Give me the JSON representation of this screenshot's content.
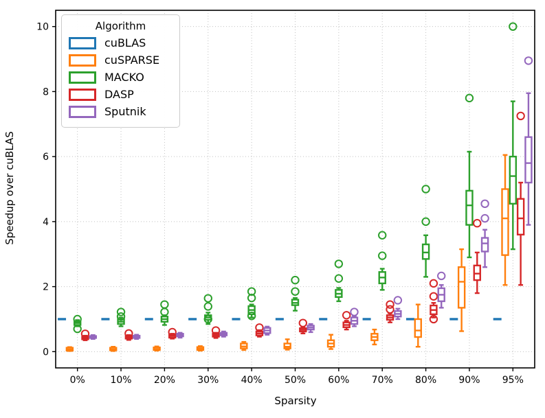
{
  "chart_data": {
    "type": "boxplot",
    "title": "",
    "xlabel": "Sparsity",
    "ylabel": "Speedup over cuBLAS",
    "legend_title": "Algorithm",
    "legend_position": "upper-left",
    "grid": "dotted",
    "categories": [
      "0%",
      "10%",
      "20%",
      "30%",
      "40%",
      "50%",
      "60%",
      "70%",
      "80%",
      "90%",
      "95%"
    ],
    "yticks": [
      0,
      2,
      4,
      6,
      8,
      10
    ],
    "yticklabels": [
      "0",
      "2",
      "4",
      "6",
      "8",
      "10"
    ],
    "ylim": [
      -0.5,
      10.5
    ],
    "baseline": {
      "series": "cuBLAS",
      "value": 1.0
    },
    "series": [
      {
        "name": "cuBLAS",
        "color": "#1f77b4",
        "style": "flat-line",
        "values": [
          1,
          1,
          1,
          1,
          1,
          1,
          1,
          1,
          1,
          1,
          1
        ]
      },
      {
        "name": "cuSPARSE",
        "color": "#ff7f0e",
        "style": "box",
        "boxes": [
          [
            0.02,
            0.03,
            0.07,
            0.12,
            0.14
          ],
          [
            0.02,
            0.04,
            0.07,
            0.12,
            0.15
          ],
          [
            0.03,
            0.05,
            0.08,
            0.13,
            0.16
          ],
          [
            0.03,
            0.05,
            0.09,
            0.14,
            0.17
          ],
          [
            0.05,
            0.1,
            0.16,
            0.25,
            0.3
          ],
          [
            0.06,
            0.1,
            0.15,
            0.25,
            0.38
          ],
          [
            0.08,
            0.15,
            0.25,
            0.35,
            0.52
          ],
          [
            0.22,
            0.35,
            0.45,
            0.55,
            0.68
          ],
          [
            0.15,
            0.45,
            0.65,
            1.0,
            1.45
          ],
          [
            0.63,
            1.35,
            2.15,
            2.6,
            3.15
          ],
          [
            2.05,
            2.97,
            4.1,
            5.0,
            6.05
          ]
        ],
        "outliers": [
          [],
          [],
          [],
          [],
          [],
          [],
          [],
          [],
          [],
          [],
          []
        ]
      },
      {
        "name": "MACKO",
        "color": "#2ca02c",
        "style": "box",
        "boxes": [
          [
            0.78,
            0.82,
            0.88,
            0.93,
            0.97
          ],
          [
            0.78,
            0.85,
            0.92,
            1.0,
            1.05
          ],
          [
            0.82,
            0.92,
            1.0,
            1.08,
            1.12
          ],
          [
            0.85,
            0.98,
            1.05,
            1.12,
            1.2
          ],
          [
            1.05,
            1.15,
            1.28,
            1.4,
            1.45
          ],
          [
            1.26,
            1.43,
            1.5,
            1.6,
            1.65
          ],
          [
            1.55,
            1.68,
            1.78,
            1.9,
            1.96
          ],
          [
            1.9,
            2.1,
            2.28,
            2.45,
            2.55
          ],
          [
            2.3,
            2.85,
            3.05,
            3.3,
            3.58
          ],
          [
            2.9,
            3.9,
            4.5,
            4.95,
            6.15
          ],
          [
            3.15,
            4.55,
            5.4,
            6.0,
            7.7
          ]
        ],
        "outliers": [
          [
            1.0,
            0.7
          ],
          [
            1.22,
            1.08
          ],
          [
            1.45,
            1.22
          ],
          [
            1.64,
            1.39,
            1.0
          ],
          [
            1.85,
            1.65,
            1.1
          ],
          [
            2.2,
            1.85
          ],
          [
            2.7,
            2.25
          ],
          [
            3.58,
            2.95
          ],
          [
            5.0,
            4.0
          ],
          [
            7.8
          ],
          [
            10.0
          ]
        ]
      },
      {
        "name": "DASP",
        "color": "#d62728",
        "style": "box",
        "boxes": [
          [
            0.35,
            0.38,
            0.42,
            0.46,
            0.49
          ],
          [
            0.36,
            0.4,
            0.44,
            0.48,
            0.51
          ],
          [
            0.4,
            0.43,
            0.48,
            0.52,
            0.55
          ],
          [
            0.42,
            0.46,
            0.5,
            0.55,
            0.58
          ],
          [
            0.46,
            0.5,
            0.56,
            0.62,
            0.66
          ],
          [
            0.56,
            0.62,
            0.67,
            0.72,
            0.76
          ],
          [
            0.68,
            0.75,
            0.82,
            0.9,
            0.95
          ],
          [
            0.9,
            0.98,
            1.05,
            1.12,
            1.18
          ],
          [
            1.05,
            1.15,
            1.28,
            1.42,
            1.5
          ],
          [
            1.8,
            2.2,
            2.4,
            2.65,
            3.05
          ],
          [
            2.05,
            3.6,
            4.1,
            4.7,
            5.2
          ]
        ],
        "outliers": [
          [
            0.55
          ],
          [
            0.56
          ],
          [
            0.6
          ],
          [
            0.65
          ],
          [
            0.74
          ],
          [
            0.88
          ],
          [
            1.12
          ],
          [
            1.45,
            1.3
          ],
          [
            2.1,
            1.7,
            1.0
          ],
          [
            3.95
          ],
          [
            7.25
          ]
        ]
      },
      {
        "name": "Sputnik",
        "color": "#9467bd",
        "style": "box",
        "boxes": [
          [
            0.39,
            0.42,
            0.45,
            0.48,
            0.51
          ],
          [
            0.39,
            0.42,
            0.45,
            0.49,
            0.52
          ],
          [
            0.43,
            0.47,
            0.51,
            0.55,
            0.58
          ],
          [
            0.46,
            0.5,
            0.54,
            0.58,
            0.62
          ],
          [
            0.52,
            0.57,
            0.65,
            0.73,
            0.77
          ],
          [
            0.6,
            0.68,
            0.74,
            0.8,
            0.85
          ],
          [
            0.78,
            0.85,
            0.95,
            1.05,
            1.1
          ],
          [
            1.0,
            1.08,
            1.16,
            1.25,
            1.32
          ],
          [
            1.35,
            1.55,
            1.75,
            1.95,
            2.05
          ],
          [
            2.6,
            3.08,
            3.33,
            3.5,
            3.75
          ],
          [
            3.9,
            5.2,
            5.8,
            6.6,
            7.95
          ]
        ],
        "outliers": [
          [],
          [],
          [],
          [],
          [],
          [],
          [
            1.22
          ],
          [
            1.58
          ],
          [
            2.33
          ],
          [
            4.55,
            4.1
          ],
          [
            8.95
          ]
        ]
      }
    ]
  }
}
